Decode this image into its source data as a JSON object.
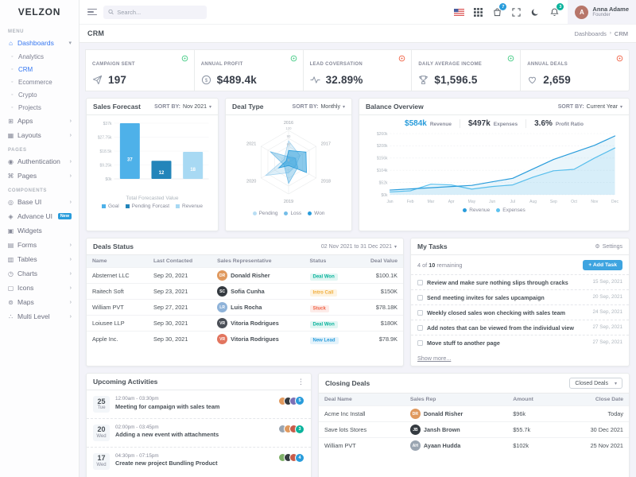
{
  "brand": {
    "logo_text": "VELZON"
  },
  "icons_text": {
    "caret_down": "▾",
    "chevron_right": "›",
    "kebab": "⋮",
    "gear": "⚙"
  },
  "topbar": {
    "search_placeholder": "Search...",
    "cart_badge": "7",
    "notif_badge": "3",
    "user": {
      "name": "Anna Adame",
      "role": "Founder",
      "initial": "A"
    }
  },
  "page_head": {
    "title": "CRM",
    "breadcrumb_root": "Dashboards",
    "breadcrumb_current": "CRM"
  },
  "sidebar": {
    "items": [
      {
        "type": "section",
        "label": "MENU"
      },
      {
        "type": "item",
        "label": "Dashboards",
        "icon": "home",
        "active": true,
        "arrow": "▾"
      },
      {
        "type": "sub",
        "label": "Analytics"
      },
      {
        "type": "sub",
        "label": "CRM",
        "active": true
      },
      {
        "type": "sub",
        "label": "Ecommerce"
      },
      {
        "type": "sub",
        "label": "Crypto"
      },
      {
        "type": "sub",
        "label": "Projects"
      },
      {
        "type": "item",
        "label": "Apps",
        "icon": "apps",
        "arrow": "›"
      },
      {
        "type": "item",
        "label": "Layouts",
        "icon": "layouts",
        "arrow": "›"
      },
      {
        "type": "section",
        "label": "PAGES"
      },
      {
        "type": "item",
        "label": "Authentication",
        "icon": "user",
        "arrow": "›"
      },
      {
        "type": "item",
        "label": "Pages",
        "icon": "pages",
        "arrow": "›"
      },
      {
        "type": "section",
        "label": "COMPONENTS"
      },
      {
        "type": "item",
        "label": "Base UI",
        "icon": "base-ui",
        "arrow": "›"
      },
      {
        "type": "item",
        "label": "Advance UI",
        "icon": "advance-ui",
        "badge": "New"
      },
      {
        "type": "item",
        "label": "Widgets",
        "icon": "widgets"
      },
      {
        "type": "item",
        "label": "Forms",
        "icon": "forms",
        "arrow": "›"
      },
      {
        "type": "item",
        "label": "Tables",
        "icon": "tables",
        "arrow": "›"
      },
      {
        "type": "item",
        "label": "Charts",
        "icon": "charts",
        "arrow": "›"
      },
      {
        "type": "item",
        "label": "Icons",
        "icon": "icons",
        "arrow": "›"
      },
      {
        "type": "item",
        "label": "Maps",
        "icon": "maps",
        "arrow": "›"
      },
      {
        "type": "item",
        "label": "Multi Level",
        "icon": "multi-level",
        "arrow": "›"
      }
    ]
  },
  "stats": [
    {
      "label": "CAMPAIGN SENT",
      "value": "197",
      "icon": "send",
      "indicator": "success"
    },
    {
      "label": "ANNUAL PROFIT",
      "value": "$489.4k",
      "icon": "dollar",
      "indicator": "success"
    },
    {
      "label": "LEAD COVERSATION",
      "value": "32.89%",
      "icon": "pulse",
      "indicator": "danger"
    },
    {
      "label": "DAILY AVERAGE INCOME",
      "value": "$1,596.5",
      "icon": "trophy",
      "indicator": "success"
    },
    {
      "label": "ANNUAL DEALS",
      "value": "2,659",
      "icon": "heart",
      "indicator": "danger"
    }
  ],
  "chart_data": [
    {
      "id": "sales_forecast",
      "type": "bar",
      "title": "Sales Forecast",
      "sort_by_label": "SORT BY:",
      "sort_by_value": "Nov 2021",
      "categories": [
        "Goal",
        "Pending Forcast",
        "Revenue"
      ],
      "values": [
        37,
        12,
        18
      ],
      "value_labels": [
        "37",
        "12",
        "18"
      ],
      "bar_colors": [
        "#4eb1e9",
        "#2385ba",
        "#a8d9f3"
      ],
      "yticks": [
        "$37k",
        "$27.75k",
        "$18.5k",
        "$9.25k",
        "$0k"
      ],
      "ylim": [
        0,
        37
      ],
      "xlabel": "Total Forecasted Value",
      "legend": [
        {
          "label": "Goal",
          "color": "#4eb1e9"
        },
        {
          "label": "Pending Forcast",
          "color": "#2385ba"
        },
        {
          "label": "Revenue",
          "color": "#a8d9f3"
        }
      ]
    },
    {
      "id": "deal_type",
      "type": "radar",
      "title": "Deal Type",
      "sort_by_label": "SORT BY:",
      "sort_by_value": "Monthly",
      "categories": [
        "2016",
        "2017",
        "2018",
        "2019",
        "2020",
        "2021"
      ],
      "series": [
        {
          "name": "Pending",
          "values": [
            80,
            50,
            30,
            40,
            100,
            20
          ],
          "fill": "rgba(41,156,219,0.16)",
          "stroke": "#a7d4ef"
        },
        {
          "name": "Loss",
          "values": [
            20,
            30,
            40,
            80,
            20,
            80
          ],
          "fill": "rgba(41,156,219,0.32)",
          "stroke": "#74bde8"
        },
        {
          "name": "Won",
          "values": [
            44,
            76,
            78,
            13,
            43,
            10
          ],
          "fill": "rgba(41,156,219,0.55)",
          "stroke": "#299cdb"
        }
      ],
      "rmax": 120,
      "rticks": [
        {
          "value": 120,
          "label": "120"
        },
        {
          "value": 90,
          "label": "90"
        },
        {
          "value": 60,
          "label": "60"
        },
        {
          "value": 0,
          "label": "0"
        }
      ],
      "legend": [
        {
          "label": "Pending",
          "color": "#b9def4"
        },
        {
          "label": "Loss",
          "color": "#74bde8"
        },
        {
          "label": "Won",
          "color": "#299cdb"
        }
      ]
    },
    {
      "id": "balance_overview",
      "type": "line",
      "title": "Balance Overview",
      "sort_by_label": "SORT BY:",
      "sort_by_value": "Current Year",
      "stats": [
        {
          "value": "$584k",
          "label": "Revenue",
          "accent_class": "accent"
        },
        {
          "value": "$497k",
          "label": "Expenses"
        },
        {
          "value": "3.6%",
          "label": "Profit Ratio"
        }
      ],
      "x": [
        "Jan",
        "Feb",
        "Mar",
        "Apr",
        "May",
        "Jun",
        "Jul",
        "Aug",
        "Sep",
        "Oct",
        "Nov",
        "Dec"
      ],
      "series": [
        {
          "name": "Revenue",
          "color": "#299cdb",
          "fill": "rgba(41,156,219,0.10)",
          "values": [
            20,
            25,
            30,
            35,
            40,
            55,
            70,
            110,
            150,
            180,
            210,
            250
          ]
        },
        {
          "name": "Expenses",
          "color": "#5ec2ef",
          "fill": "rgba(94,194,239,0.12)",
          "values": [
            12,
            17,
            45,
            42,
            24,
            35,
            42,
            75,
            102,
            108,
            156,
            199
          ]
        }
      ],
      "yticks": [
        {
          "value": 260,
          "label": "$260k"
        },
        {
          "value": 208,
          "label": "$208k"
        },
        {
          "value": 156,
          "label": "$156k"
        },
        {
          "value": 104,
          "label": "$104k"
        },
        {
          "value": 52,
          "label": "$52k"
        },
        {
          "value": 0,
          "label": "$0k"
        }
      ],
      "ylim": [
        0,
        260
      ]
    }
  ],
  "deals_status": {
    "title": "Deals Status",
    "range": "02 Nov 2021 to 31 Dec 2021",
    "headers": [
      "Name",
      "Last Contacted",
      "Sales Representative",
      "Status",
      "Deal Value"
    ],
    "rows": [
      {
        "name": "Absternet LLC",
        "last_contacted": "Sep 20, 2021",
        "rep": "Donald Risher",
        "rep_initials": "DR",
        "avatar_bg": "#e0995e",
        "status": "Deal Won",
        "status_class": "success",
        "value": "$100.1K"
      },
      {
        "name": "Raitech Soft",
        "last_contacted": "Sep 23, 2021",
        "rep": "Sofia Cunha",
        "rep_initials": "SC",
        "avatar_bg": "#343a40",
        "status": "Intro Call",
        "status_class": "warning",
        "value": "$150K"
      },
      {
        "name": "William PVT",
        "last_contacted": "Sep 27, 2021",
        "rep": "Luis Rocha",
        "rep_initials": "LR",
        "avatar_bg": "#8fb3d9",
        "status": "Stuck",
        "status_class": "danger",
        "value": "$78.18K"
      },
      {
        "name": "Loiusee LLP",
        "last_contacted": "Sep 30, 2021",
        "rep": "Vitoria Rodrigues",
        "rep_initials": "VR",
        "avatar_bg": "#4b4f57",
        "status": "Deal Won",
        "status_class": "success",
        "value": "$180K"
      },
      {
        "name": "Apple Inc.",
        "last_contacted": "Sep 30, 2021",
        "rep": "Vitoria Rodrigues",
        "rep_initials": "VR",
        "avatar_bg": "#e2755f",
        "status": "New Lead",
        "status_class": "info",
        "value": "$78.9K"
      }
    ]
  },
  "tasks": {
    "title": "My Tasks",
    "settings_label": "Settings",
    "remaining_prefix": "4 of ",
    "remaining_count": "10",
    "remaining_suffix": " remaining",
    "add_label": "+ Add Task",
    "items": [
      {
        "text": "Review and make sure nothing slips through cracks",
        "date": "15 Sep, 2021"
      },
      {
        "text": "Send meeting invites for sales upcampaign",
        "date": "20 Sep, 2021"
      },
      {
        "text": "Weekly closed sales won checking with sales team",
        "date": "24 Sep, 2021"
      },
      {
        "text": "Add notes that can be viewed from the individual view",
        "date": "27 Sep, 2021"
      },
      {
        "text": "Move stuff to another page",
        "date": "27 Sep, 2021"
      }
    ],
    "show_more": "Show more..."
  },
  "activities": {
    "title": "Upcoming Activities",
    "items": [
      {
        "day": "25",
        "weekday": "Tue",
        "time": "12:00am - 03:30pm",
        "title": "Meeting for campaign with sales team",
        "count": "5",
        "count_bg": "#299cdb",
        "avatars": [
          "#7b6fb5",
          "#343a40",
          "#e0995e"
        ]
      },
      {
        "day": "20",
        "weekday": "Wed",
        "time": "02:00pm - 03:45pm",
        "title": "Adding a new event with attachments",
        "count": "3",
        "count_bg": "#0ab39c",
        "avatars": [
          "#c85c4a",
          "#e0995e",
          "#9aa5b1"
        ]
      },
      {
        "day": "17",
        "weekday": "Wed",
        "time": "04:30pm - 07:15pm",
        "title": "Create new project Bundling Product",
        "count": "4",
        "count_bg": "#299cdb",
        "avatars": [
          "#c85c4a",
          "#343a40",
          "#7fb069"
        ]
      }
    ]
  },
  "closing_deals": {
    "title": "Closing Deals",
    "filter_value": "Closed Deals",
    "headers": [
      "Deal Name",
      "Sales Rep",
      "Amount",
      "Close Date"
    ],
    "rows": [
      {
        "name": "Acme Inc Install",
        "rep": "Donald Risher",
        "rep_initials": "DR",
        "avatar_bg": "#e0995e",
        "amount": "$96k",
        "date": "Today"
      },
      {
        "name": "Save lots Stores",
        "rep": "Jansh Brown",
        "rep_initials": "JB",
        "avatar_bg": "#343a40",
        "amount": "$55.7k",
        "date": "30 Dec 2021"
      },
      {
        "name": "William PVT",
        "rep": "Ayaan Hudda",
        "rep_initials": "AH",
        "avatar_bg": "#9aa5b1",
        "amount": "$102k",
        "date": "25 Nov 2021"
      }
    ]
  }
}
